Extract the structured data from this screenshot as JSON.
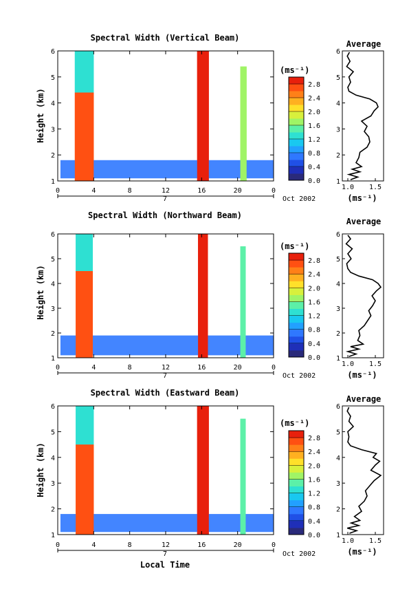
{
  "figure": {
    "xlabel": "Local Time",
    "date_label": "Oct 2002",
    "day_label": "7",
    "avg_title": "Average",
    "avg_xlabel": "(ms⁻¹)",
    "cbar_unit": "(ms⁻¹)",
    "cbar_ticks": [
      "2.8",
      "2.4",
      "2.0",
      "1.6",
      "1.2",
      "0.8",
      "0.4",
      "0.0"
    ],
    "colors": [
      "#2a2a7a",
      "#1f2fb8",
      "#2050e6",
      "#2f78ff",
      "#22a0ff",
      "#19c8f0",
      "#2ee0d2",
      "#5cf0a8",
      "#a0f466",
      "#d8f03c",
      "#ffe02a",
      "#ffb020",
      "#ff8018",
      "#ff5012",
      "#e8200c"
    ]
  },
  "chart_data": [
    {
      "type": "heatmap",
      "title": "Spectral Width (Vertical Beam)",
      "xlabel": "",
      "ylabel": "Height (km)",
      "xticks": [
        "0",
        "4",
        "8",
        "12",
        "16",
        "20",
        "0"
      ],
      "yticks": [
        "1",
        "2",
        "3",
        "4",
        "5",
        "6"
      ],
      "xlim": [
        0,
        24
      ],
      "ylim": [
        1,
        6
      ],
      "colorbar": {
        "label": "(ms⁻¹)",
        "range": [
          0.0,
          3.0
        ]
      },
      "values_note": "",
      "bands": [
        {
          "x0": 1.9,
          "x1": 4.0,
          "y0": 1.0,
          "y1": 4.4,
          "value": 2.8
        },
        {
          "x0": 1.9,
          "x1": 4.0,
          "y0": 4.4,
          "y1": 6.0,
          "value": 1.4
        },
        {
          "x0": 15.5,
          "x1": 16.8,
          "y0": 1.0,
          "y1": 6.0,
          "value": 2.9
        },
        {
          "x0": 20.3,
          "x1": 21.0,
          "y0": 1.0,
          "y1": 5.4,
          "value": 1.6
        },
        {
          "x0": 0.3,
          "x1": 24.0,
          "y0": 1.1,
          "y1": 1.8,
          "value": 0.7
        }
      ],
      "average_profile": {
        "xlabel": "(ms⁻¹)",
        "xticks": [
          "1.0",
          "1.5"
        ],
        "xlim": [
          0.9,
          1.65
        ],
        "heights": [
          1.05,
          1.15,
          1.25,
          1.35,
          1.45,
          1.55,
          1.7,
          1.9,
          2.1,
          2.3,
          2.5,
          2.7,
          2.9,
          3.1,
          3.3,
          3.5,
          3.7,
          3.85,
          4.0,
          4.15,
          4.3,
          4.45,
          4.6,
          4.8,
          5.0,
          5.2,
          5.4,
          5.6,
          5.8,
          5.95
        ],
        "values": [
          1.05,
          1.18,
          1.02,
          1.22,
          1.08,
          1.25,
          1.15,
          1.2,
          1.22,
          1.35,
          1.4,
          1.38,
          1.3,
          1.35,
          1.25,
          1.42,
          1.48,
          1.55,
          1.52,
          1.4,
          1.15,
          1.02,
          1.0,
          1.05,
          1.02,
          1.1,
          0.98,
          1.04,
          0.99,
          1.03
        ]
      }
    },
    {
      "type": "heatmap",
      "title": "Spectral Width (Northward Beam)",
      "xlabel": "",
      "ylabel": "Height (km)",
      "xticks": [
        "0",
        "4",
        "8",
        "12",
        "16",
        "20",
        "0"
      ],
      "yticks": [
        "1",
        "2",
        "3",
        "4",
        "5",
        "6"
      ],
      "xlim": [
        0,
        24
      ],
      "ylim": [
        1,
        6
      ],
      "colorbar": {
        "label": "(ms⁻¹)",
        "range": [
          0.0,
          3.0
        ]
      },
      "values_note": "",
      "bands": [
        {
          "x0": 2.0,
          "x1": 3.9,
          "y0": 1.0,
          "y1": 4.5,
          "value": 2.8
        },
        {
          "x0": 2.0,
          "x1": 3.9,
          "y0": 4.5,
          "y1": 6.0,
          "value": 1.4
        },
        {
          "x0": 15.6,
          "x1": 16.7,
          "y0": 1.0,
          "y1": 6.0,
          "value": 2.9
        },
        {
          "x0": 20.3,
          "x1": 20.9,
          "y0": 1.0,
          "y1": 5.5,
          "value": 1.5
        },
        {
          "x0": 0.3,
          "x1": 24.0,
          "y0": 1.1,
          "y1": 1.9,
          "value": 0.7
        }
      ],
      "average_profile": {
        "xlabel": "(ms⁻¹)",
        "xticks": [
          "1.0",
          "1.5"
        ],
        "xlim": [
          0.9,
          1.65
        ],
        "heights": [
          1.05,
          1.15,
          1.25,
          1.35,
          1.45,
          1.55,
          1.7,
          1.9,
          2.1,
          2.3,
          2.5,
          2.7,
          2.9,
          3.1,
          3.3,
          3.5,
          3.7,
          3.85,
          4.0,
          4.15,
          4.3,
          4.45,
          4.6,
          4.8,
          5.0,
          5.2,
          5.4,
          5.6,
          5.8,
          5.95
        ],
        "values": [
          1.02,
          1.15,
          1.0,
          1.2,
          1.05,
          1.28,
          1.18,
          1.22,
          1.2,
          1.3,
          1.36,
          1.42,
          1.38,
          1.45,
          1.5,
          1.44,
          1.52,
          1.6,
          1.55,
          1.45,
          1.2,
          1.05,
          1.0,
          0.98,
          1.06,
          1.0,
          1.08,
          0.97,
          1.05,
          1.0
        ]
      }
    },
    {
      "type": "heatmap",
      "title": "Spectral Width (Eastward Beam)",
      "xlabel": "Local Time",
      "ylabel": "Height (km)",
      "xticks": [
        "0",
        "4",
        "8",
        "12",
        "16",
        "20",
        "0"
      ],
      "yticks": [
        "1",
        "2",
        "3",
        "4",
        "5",
        "6"
      ],
      "xlim": [
        0,
        24
      ],
      "ylim": [
        1,
        6
      ],
      "colorbar": {
        "label": "(ms⁻¹)",
        "range": [
          0.0,
          3.0
        ]
      },
      "values_note": "",
      "bands": [
        {
          "x0": 2.0,
          "x1": 4.0,
          "y0": 1.0,
          "y1": 4.5,
          "value": 2.8
        },
        {
          "x0": 2.0,
          "x1": 4.0,
          "y0": 4.5,
          "y1": 6.0,
          "value": 1.4
        },
        {
          "x0": 15.5,
          "x1": 16.8,
          "y0": 1.0,
          "y1": 6.0,
          "value": 2.9
        },
        {
          "x0": 20.3,
          "x1": 20.9,
          "y0": 1.0,
          "y1": 5.5,
          "value": 1.5
        },
        {
          "x0": 0.3,
          "x1": 24.0,
          "y0": 1.1,
          "y1": 1.8,
          "value": 0.7
        }
      ],
      "average_profile": {
        "xlabel": "(ms⁻¹)",
        "xticks": [
          "1.0",
          "1.5"
        ],
        "xlim": [
          0.9,
          1.65
        ],
        "heights": [
          1.05,
          1.15,
          1.25,
          1.35,
          1.45,
          1.55,
          1.7,
          1.9,
          2.1,
          2.3,
          2.5,
          2.7,
          2.9,
          3.1,
          3.3,
          3.5,
          3.7,
          3.85,
          4.0,
          4.15,
          4.3,
          4.45,
          4.6,
          4.8,
          5.0,
          5.2,
          5.4,
          5.6,
          5.8,
          5.95
        ],
        "values": [
          1.03,
          1.16,
          0.99,
          1.2,
          1.06,
          1.22,
          1.12,
          1.25,
          1.2,
          1.3,
          1.35,
          1.32,
          1.4,
          1.48,
          1.6,
          1.42,
          1.5,
          1.58,
          1.46,
          1.52,
          1.25,
          1.05,
          1.0,
          1.02,
          1.0,
          1.1,
          1.02,
          1.05,
          0.99,
          1.02
        ]
      }
    }
  ]
}
